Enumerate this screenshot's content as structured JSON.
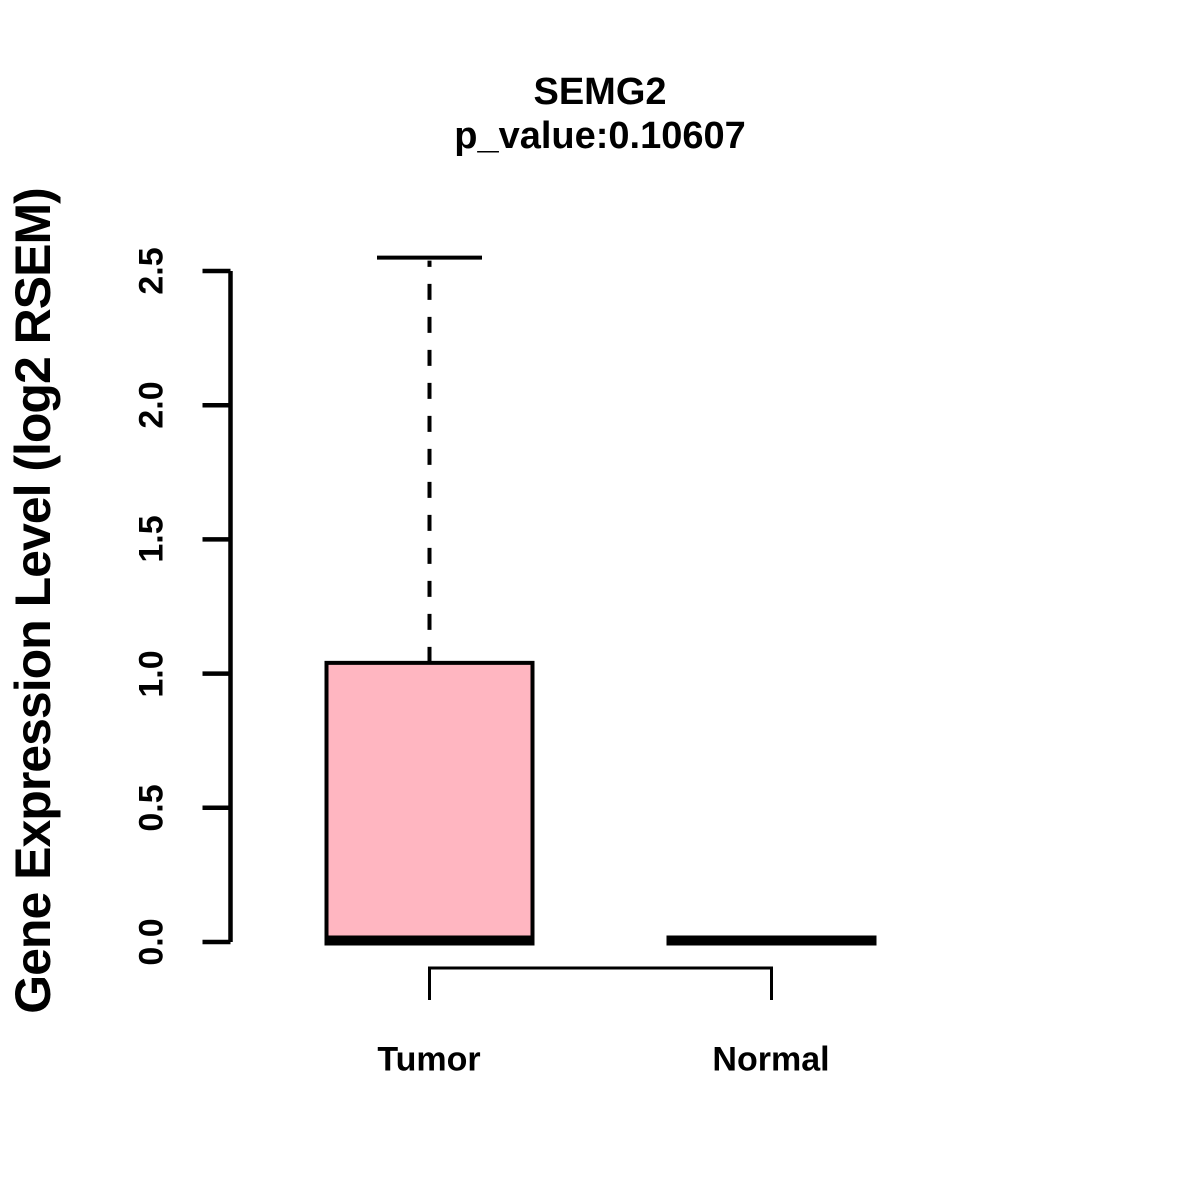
{
  "chart_data": {
    "type": "boxplot",
    "title": "SEMG2",
    "subtitle": "p_value:0.10607",
    "p_value": 0.10607,
    "ylabel": "Gene Expression Level (log2 RSEM)",
    "xlabel": "",
    "ylim": [
      0,
      2.55
    ],
    "yticks": [
      0.0,
      0.5,
      1.0,
      1.5,
      2.0,
      2.5
    ],
    "ytick_labels": [
      "0.0",
      "0.5",
      "1.0",
      "1.5",
      "2.0",
      "2.5"
    ],
    "categories": [
      "Tumor",
      "Normal"
    ],
    "grid": false,
    "legend": "none",
    "comparison_bracket": [
      "Tumor",
      "Normal"
    ],
    "groups": [
      {
        "name": "Tumor",
        "min": 0.0,
        "q1": 0.0,
        "median": 0.0,
        "q3": 1.04,
        "whisker_high": 2.55,
        "fill": "#FFB6C1"
      },
      {
        "name": "Normal",
        "min": 0.0,
        "q1": 0.0,
        "median": 0.0,
        "q3": 0.0,
        "whisker_high": 0.0,
        "fill": "#FFB6C1"
      }
    ],
    "colors": {
      "box_fill": "#FFB6C1",
      "line": "#000000",
      "background": "#FFFFFF"
    }
  }
}
